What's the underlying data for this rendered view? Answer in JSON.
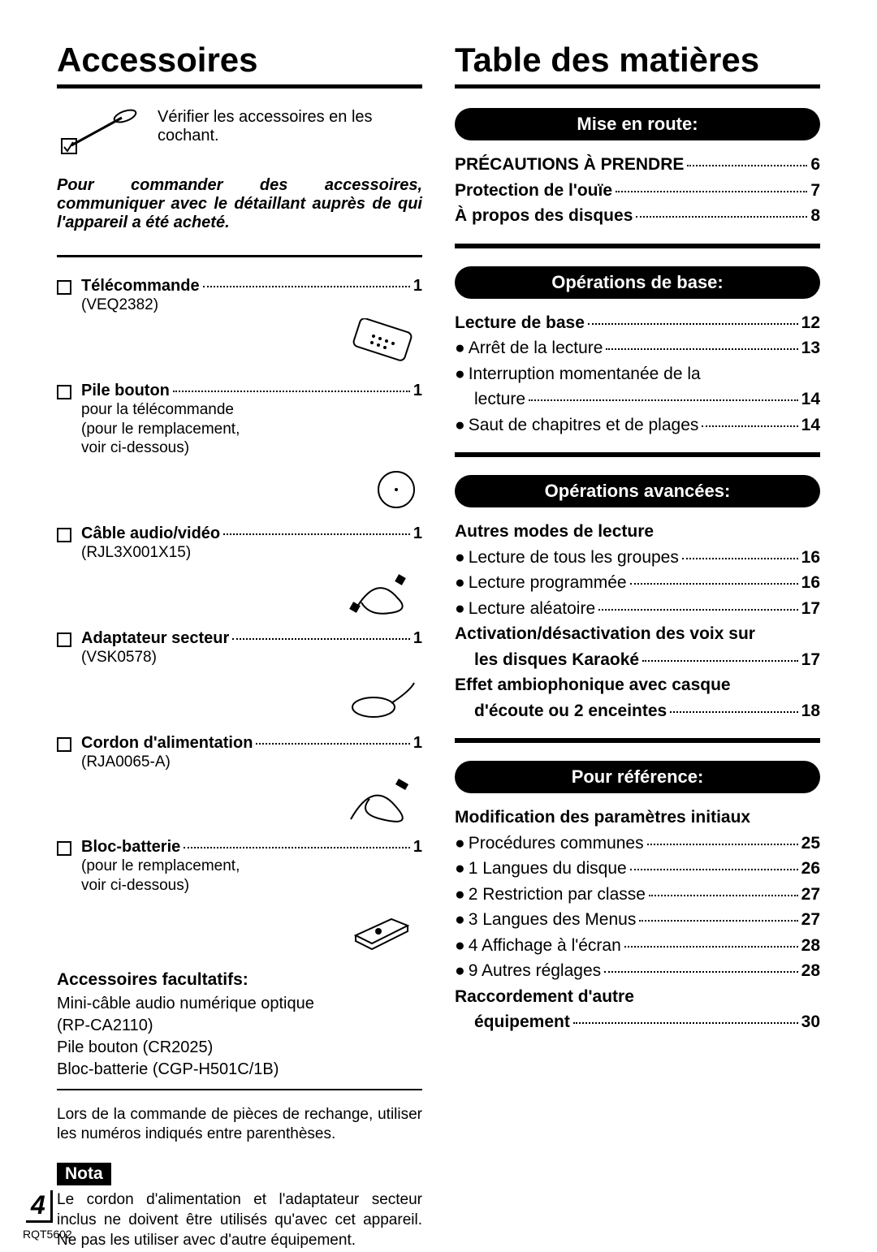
{
  "page_number": "4",
  "doc_code": "RQT5602",
  "left": {
    "title": "Accessoires",
    "check_text": "Vérifier les accessoires en les cochant.",
    "order_note": "Pour commander des accessoires, communiquer avec le détaillant auprès de qui l'appareil a été acheté.",
    "items": [
      {
        "label": "Télécommande",
        "qty": "1",
        "sub": "(VEQ2382)",
        "icon": "remote"
      },
      {
        "label": "Pile bouton",
        "qty": "1",
        "sub": "pour la télécommande\n(pour le remplacement,\nvoir ci-dessous)",
        "icon": "coincell"
      },
      {
        "label": "Câble audio/vidéo",
        "qty": "1",
        "sub": "(RJL3X001X15)",
        "icon": "avcable"
      },
      {
        "label": "Adaptateur secteur",
        "qty": "1",
        "sub": "(VSK0578)",
        "icon": "adapter"
      },
      {
        "label": "Cordon d'alimentation",
        "qty": "1",
        "sub": "(RJA0065-A)",
        "icon": "powercord"
      },
      {
        "label": "Bloc-batterie",
        "qty": "1",
        "sub": "(pour le remplacement,\nvoir ci-dessous)",
        "icon": "battery"
      }
    ],
    "optional_title": "Accessoires facultatifs:",
    "optional_body": "Mini-câble audio numérique optique\n(RP-CA2110)\nPile bouton (CR2025)\nBloc-batterie (CGP-H501C/1B)",
    "spare_note": "Lors de la commande de pièces de rechange, utiliser les numéros indiqués entre parenthèses.",
    "nota_label": "Nota",
    "nota_text": "Le cordon d'alimentation et l'adaptateur secteur inclus ne doivent être utilisés qu'avec cet appareil. Ne pas les utiliser avec d'autre équipement."
  },
  "right": {
    "title": "Table des matières",
    "sections": [
      {
        "header": "Mise en route:",
        "lines": [
          {
            "label": "PRÉCAUTIONS À PRENDRE",
            "page": "6",
            "bold": true
          },
          {
            "label": "Protection de l'ouïe",
            "page": "7",
            "bold": true
          },
          {
            "label": "À propos des disques",
            "page": "8",
            "bold": true
          }
        ]
      },
      {
        "header": "Opérations de base:",
        "lines": [
          {
            "label": "Lecture de base",
            "page": "12",
            "bold": true
          },
          {
            "label": "Arrêt de la lecture",
            "page": "13",
            "bullet": true
          },
          {
            "label": "Interruption momentanée de la",
            "bullet": true,
            "nopage": true
          },
          {
            "label": "lecture",
            "page": "14",
            "indent": true
          },
          {
            "label": "Saut de chapitres et de plages",
            "page": "14",
            "bullet": true
          }
        ]
      },
      {
        "header": "Opérations avancées:",
        "lines": [
          {
            "label": "Autres modes de lecture",
            "bold": true,
            "nopage": true
          },
          {
            "label": "Lecture de tous les groupes",
            "page": "16",
            "bullet": true
          },
          {
            "label": "Lecture programmée",
            "page": "16",
            "bullet": true
          },
          {
            "label": "Lecture aléatoire",
            "page": "17",
            "bullet": true
          },
          {
            "label": "Activation/désactivation des voix sur",
            "bold": true,
            "nopage": true
          },
          {
            "label": "les disques Karaoké",
            "page": "17",
            "bold": true,
            "indent": true
          },
          {
            "label": "Effet ambiophonique avec casque",
            "bold": true,
            "nopage": true
          },
          {
            "label": "d'écoute ou 2 enceintes",
            "page": "18",
            "bold": true,
            "indent": true
          }
        ]
      },
      {
        "header": "Pour référence:",
        "lines": [
          {
            "label": "Modification des paramètres initiaux",
            "bold": true,
            "nopage": true
          },
          {
            "label": "Procédures communes",
            "page": "25",
            "bullet": true
          },
          {
            "label": "1 Langues du disque",
            "page": "26",
            "bullet": true
          },
          {
            "label": "2 Restriction par classe",
            "page": "27",
            "bullet": true
          },
          {
            "label": "3 Langues des Menus",
            "page": "27",
            "bullet": true
          },
          {
            "label": "4 Affichage à l'écran",
            "page": "28",
            "bullet": true
          },
          {
            "label": "9 Autres réglages",
            "page": "28",
            "bullet": true
          },
          {
            "label": "Raccordement d'autre",
            "bold": true,
            "nopage": true
          },
          {
            "label": "équipement",
            "page": "30",
            "bold": true,
            "indent": true
          }
        ]
      }
    ]
  }
}
